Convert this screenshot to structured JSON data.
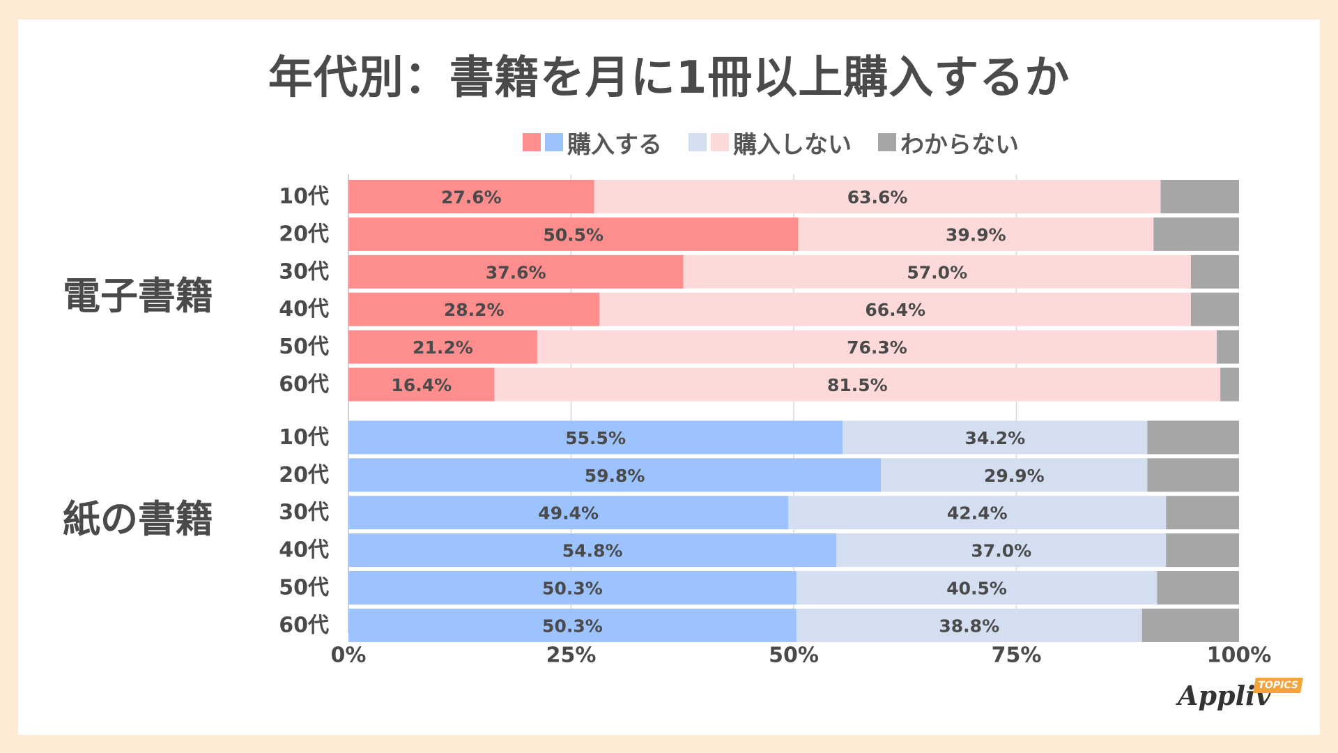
{
  "title": "年代別：書籍を月に1冊以上購入するか",
  "legend": {
    "buy": "購入する",
    "not_buy": "購入しない",
    "unknown": "わからない"
  },
  "colors": {
    "ebook_buy": "#fe8e8e",
    "ebook_not": "#fed9d9",
    "paper_buy": "#9cc3fe",
    "paper_not": "#d3def0",
    "unknown": "#a6a6a6",
    "grid": "#d9d9d9",
    "text": "#4a4a4a"
  },
  "logo": {
    "name": "Appliv",
    "badge": "TOPICS"
  },
  "chart_data": {
    "type": "bar",
    "orientation": "horizontal-stacked-100",
    "title": "年代別：書籍を月に1冊以上購入するか",
    "xlim": [
      0,
      100
    ],
    "x_ticks": [
      "0%",
      "25%",
      "50%",
      "75%",
      "100%"
    ],
    "groups": [
      {
        "name": "電子書籍",
        "categories": [
          "10代",
          "20代",
          "30代",
          "40代",
          "50代",
          "60代"
        ],
        "series": [
          {
            "name": "購入する",
            "values": [
              27.6,
              50.5,
              37.6,
              28.2,
              21.2,
              16.4
            ]
          },
          {
            "name": "購入しない",
            "values": [
              63.6,
              39.9,
              57.0,
              66.4,
              76.3,
              81.5
            ]
          },
          {
            "name": "わからない",
            "values": [
              8.8,
              9.6,
              5.4,
              5.4,
              2.5,
              2.1
            ]
          }
        ],
        "labels": {
          "buy": [
            "27.6%",
            "50.5%",
            "37.6%",
            "28.2%",
            "21.2%",
            "16.4%"
          ],
          "not": [
            "63.6%",
            "39.9%",
            "57.0%",
            "66.4%",
            "76.3%",
            "81.5%"
          ]
        }
      },
      {
        "name": "紙の書籍",
        "categories": [
          "10代",
          "20代",
          "30代",
          "40代",
          "50代",
          "60代"
        ],
        "series": [
          {
            "name": "購入する",
            "values": [
              55.5,
              59.8,
              49.4,
              54.8,
              50.3,
              50.3
            ]
          },
          {
            "name": "購入しない",
            "values": [
              34.2,
              29.9,
              42.4,
              37.0,
              40.5,
              38.8
            ]
          },
          {
            "name": "わからない",
            "values": [
              10.3,
              10.3,
              8.2,
              8.2,
              9.2,
              10.9
            ]
          }
        ],
        "labels": {
          "buy": [
            "55.5%",
            "59.8%",
            "49.4%",
            "54.8%",
            "50.3%",
            "50.3%"
          ],
          "not": [
            "34.2%",
            "29.9%",
            "42.4%",
            "37.0%",
            "40.5%",
            "38.8%"
          ]
        }
      }
    ]
  }
}
